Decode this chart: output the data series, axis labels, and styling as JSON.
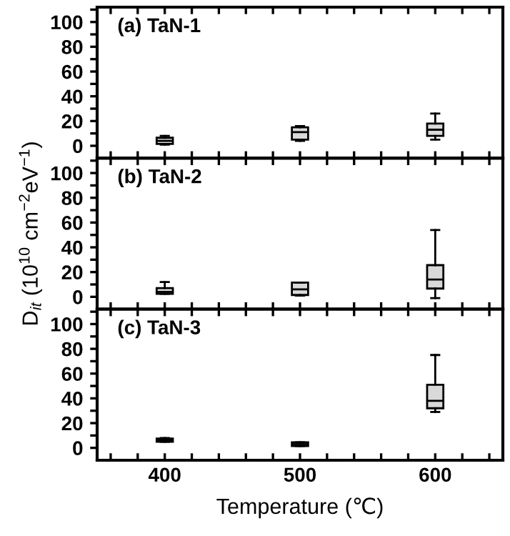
{
  "chart_data": [
    {
      "type": "box",
      "title": "(a) TaN-1",
      "x": [
        400,
        500,
        600
      ],
      "color": "#d9d9d9",
      "tick_labels": "y",
      "boxes": [
        {
          "low": 1,
          "q1": 1.5,
          "median": 4,
          "q3": 6.5,
          "high": 8
        },
        {
          "low": 4,
          "q1": 5,
          "median": 11,
          "q3": 15,
          "high": 16
        },
        {
          "low": 5,
          "q1": 8,
          "median": 13,
          "q3": 18,
          "high": 26
        }
      ],
      "xlim": [
        350,
        650
      ],
      "xticks": [
        {
          "value": 360,
          "label": null
        },
        {
          "value": 380,
          "label": null
        },
        400,
        {
          "value": 420,
          "label": null
        },
        {
          "value": 440,
          "label": null
        },
        {
          "value": 460,
          "label": null
        },
        {
          "value": 480,
          "label": null
        },
        500,
        {
          "value": 520,
          "label": null
        },
        {
          "value": 540,
          "label": null
        },
        {
          "value": 560,
          "label": null
        },
        {
          "value": 580,
          "label": null
        },
        600,
        {
          "value": 620,
          "label": null
        },
        {
          "value": 640,
          "label": null
        }
      ],
      "ylim": [
        -10,
        112
      ],
      "yticks": [
        0,
        {
          "value": 10,
          "label": null
        },
        20,
        {
          "value": 30,
          "label": null
        },
        40,
        {
          "value": 50,
          "label": null
        },
        60,
        {
          "value": 70,
          "label": null
        },
        80,
        {
          "value": 90,
          "label": null
        },
        100,
        {
          "value": 110,
          "label": null
        }
      ]
    },
    {
      "type": "box",
      "title": "(b) TaN-2",
      "ylabel": "D$_{it}$ (10$^{10}$ cm$^{−2}$eV$^{−1}$)",
      "x": [
        400,
        500,
        600
      ],
      "color": "#d9d9d9",
      "tick_labels": "y",
      "boxes": [
        {
          "low": 2.5,
          "q1": 2.5,
          "median": 4,
          "q3": 7,
          "high": 12
        },
        {
          "low": 1,
          "q1": 1.5,
          "median": 6,
          "q3": 11.5,
          "high": 11.5
        },
        {
          "low": -1,
          "q1": 6.7,
          "median": 14,
          "q3": 25.6,
          "high": 54
        }
      ],
      "xlim": [
        350,
        650
      ],
      "xticks": [
        {
          "value": 360,
          "label": null
        },
        {
          "value": 380,
          "label": null
        },
        400,
        {
          "value": 420,
          "label": null
        },
        {
          "value": 440,
          "label": null
        },
        {
          "value": 460,
          "label": null
        },
        {
          "value": 480,
          "label": null
        },
        500,
        {
          "value": 520,
          "label": null
        },
        {
          "value": 540,
          "label": null
        },
        {
          "value": 560,
          "label": null
        },
        {
          "value": 580,
          "label": null
        },
        600,
        {
          "value": 620,
          "label": null
        },
        {
          "value": 640,
          "label": null
        }
      ],
      "ylim": [
        -10,
        112
      ],
      "yticks": [
        0,
        {
          "value": 10,
          "label": null
        },
        20,
        {
          "value": 30,
          "label": null
        },
        40,
        {
          "value": 50,
          "label": null
        },
        60,
        {
          "value": 70,
          "label": null
        },
        80,
        {
          "value": 90,
          "label": null
        },
        100,
        {
          "value": 110,
          "label": null
        }
      ]
    },
    {
      "type": "box",
      "title": "(c) TaN-3",
      "xlabel": "Temperature (℃)",
      "x": [
        400,
        500,
        600
      ],
      "color": "#d9d9d9",
      "boxes": [
        {
          "low": 5,
          "q1": 5,
          "median": 6,
          "q3": 7.5,
          "high": 8
        },
        {
          "low": 1.5,
          "q1": 1.5,
          "median": 3,
          "q3": 4.5,
          "high": 4.5
        },
        {
          "low": 29,
          "q1": 32,
          "median": 38,
          "q3": 51,
          "high": 75
        }
      ],
      "xlim": [
        350,
        650
      ],
      "xticks": [
        {
          "value": 360,
          "label": null
        },
        {
          "value": 380,
          "label": null
        },
        400,
        {
          "value": 420,
          "label": null
        },
        {
          "value": 440,
          "label": null
        },
        {
          "value": 460,
          "label": null
        },
        {
          "value": 480,
          "label": null
        },
        500,
        {
          "value": 520,
          "label": null
        },
        {
          "value": 540,
          "label": null
        },
        {
          "value": 560,
          "label": null
        },
        {
          "value": 580,
          "label": null
        },
        600,
        {
          "value": 620,
          "label": null
        },
        {
          "value": 640,
          "label": null
        }
      ],
      "ylim": [
        -10,
        112
      ],
      "yticks": [
        0,
        {
          "value": 10,
          "label": null
        },
        20,
        {
          "value": 30,
          "label": null
        },
        40,
        {
          "value": 50,
          "label": null
        },
        60,
        {
          "value": 70,
          "label": null
        },
        80,
        {
          "value": 90,
          "label": null
        },
        100,
        {
          "value": 110,
          "label": null
        }
      ]
    }
  ]
}
